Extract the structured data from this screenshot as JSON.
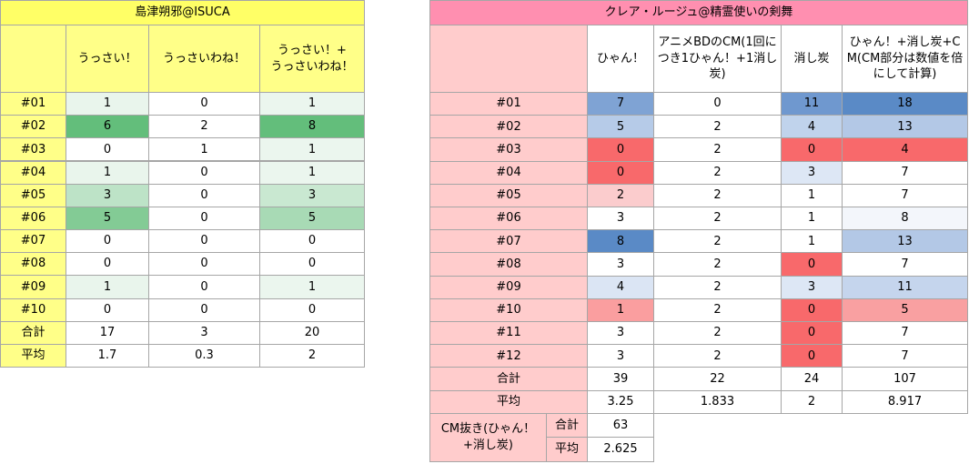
{
  "left": {
    "title": "島津朔邪@ISUCA",
    "headers": [
      "うっさい！",
      "うっさいわね！",
      "うっさい！+\nうっさいわね！"
    ],
    "rows": [
      [
        "#01",
        1,
        0,
        1
      ],
      [
        "#02",
        6,
        2,
        8
      ],
      [
        "#03",
        0,
        1,
        1
      ],
      [
        "#04",
        1,
        0,
        1
      ],
      [
        "#05",
        3,
        0,
        3
      ],
      [
        "#06",
        5,
        0,
        5
      ],
      [
        "#07",
        0,
        0,
        0
      ],
      [
        "#08",
        0,
        0,
        0
      ],
      [
        "#09",
        1,
        0,
        1
      ],
      [
        "#10",
        0,
        0,
        0
      ],
      [
        "合計",
        17,
        3,
        20
      ],
      [
        "平均",
        1.7,
        0.3,
        2
      ]
    ]
  },
  "right": {
    "title": "クレア・ルージュ@精霊使いの剣舞",
    "headers": [
      "ひゃん！",
      "アニメBDのCM(1回につき1ひゃん！+1消し炭)",
      "消し炭",
      "ひゃん！+消し炭+CM(CM部分は数値を倍にして計算)"
    ],
    "rows": [
      [
        "#01",
        7,
        0,
        11,
        18
      ],
      [
        "#02",
        5,
        2,
        4,
        13
      ],
      [
        "#03",
        0,
        2,
        0,
        4
      ],
      [
        "#04",
        0,
        2,
        3,
        7
      ],
      [
        "#05",
        2,
        2,
        1,
        7
      ],
      [
        "#06",
        3,
        2,
        1,
        8
      ],
      [
        "#07",
        8,
        2,
        1,
        13
      ],
      [
        "#08",
        3,
        2,
        0,
        7
      ],
      [
        "#09",
        4,
        2,
        3,
        11
      ],
      [
        "#10",
        1,
        2,
        0,
        5
      ],
      [
        "#11",
        3,
        2,
        0,
        7
      ],
      [
        "#12",
        3,
        2,
        0,
        7
      ],
      [
        "合計",
        39,
        22,
        24,
        107
      ],
      [
        "平均",
        3.25,
        1.833,
        2,
        8.917
      ]
    ],
    "cm_label": "CM抜き(ひゃん！+消し炭)",
    "cm_rows": [
      [
        "合計",
        63
      ],
      [
        "平均",
        2.625
      ]
    ]
  }
}
